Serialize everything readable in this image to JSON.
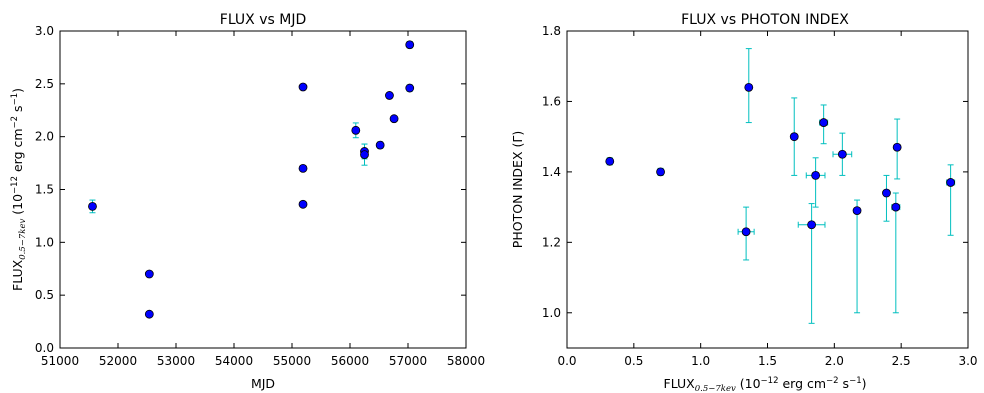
{
  "chart_data": [
    {
      "type": "scatter",
      "title": "FLUX vs MJD",
      "xlabel": "MJD",
      "ylabel": {
        "main": "FLUX",
        "sub": "0.5−7kev",
        "tail_open": " (10",
        "exp": "−12",
        "units": " erg cm",
        "units_exp": "−2",
        "units_s": " s",
        "s_exp": "−1",
        "tail_close": ")"
      },
      "xlim": [
        51000,
        58000
      ],
      "ylim": [
        0.0,
        3.0
      ],
      "xticks": [
        "51000",
        "52000",
        "53000",
        "54000",
        "55000",
        "56000",
        "57000",
        "58000"
      ],
      "yticks": [
        "0.0",
        "0.5",
        "1.0",
        "1.5",
        "2.0",
        "2.5",
        "3.0"
      ],
      "grid": false,
      "marker_color": "#0000ff",
      "errorbar_color": "#00bfbf",
      "points": [
        {
          "x": 51560,
          "y": 1.34,
          "yerr": 0.06
        },
        {
          "x": 52540,
          "y": 0.7,
          "yerr": 0.02
        },
        {
          "x": 52540,
          "y": 0.32,
          "yerr": 0.02
        },
        {
          "x": 55190,
          "y": 2.47,
          "yerr": 0.02
        },
        {
          "x": 55190,
          "y": 1.7,
          "yerr": 0.02
        },
        {
          "x": 55190,
          "y": 1.36,
          "yerr": 0.02
        },
        {
          "x": 56100,
          "y": 2.06,
          "yerr": 0.07
        },
        {
          "x": 56250,
          "y": 1.86,
          "yerr": 0.07
        },
        {
          "x": 56250,
          "y": 1.83,
          "yerr": 0.1
        },
        {
          "x": 56520,
          "y": 1.92,
          "yerr": 0.03
        },
        {
          "x": 56680,
          "y": 2.39,
          "yerr": 0.02
        },
        {
          "x": 56760,
          "y": 2.17,
          "yerr": 0.02
        },
        {
          "x": 57030,
          "y": 2.87,
          "yerr": 0.03
        },
        {
          "x": 57030,
          "y": 2.46,
          "yerr": 0.03
        }
      ]
    },
    {
      "type": "scatter",
      "title": "FLUX vs PHOTON INDEX",
      "xlabel": {
        "main": "FLUX",
        "sub": "0.5−7kev",
        "tail_open": " (10",
        "exp": "−12",
        "units": " erg cm",
        "units_exp": "−2",
        "units_s": " s",
        "s_exp": "−1",
        "tail_close": ")"
      },
      "ylabel": "PHOTON INDEX (Γ)",
      "xlim": [
        0.0,
        3.0
      ],
      "ylim": [
        0.9,
        1.8
      ],
      "xticks": [
        "0.0",
        "0.5",
        "1.0",
        "1.5",
        "2.0",
        "2.5",
        "3.0"
      ],
      "yticks": [
        "1.0",
        "1.2",
        "1.4",
        "1.6",
        "1.8"
      ],
      "grid": false,
      "marker_color": "#0000ff",
      "errorbar_color": "#00bfbf",
      "points": [
        {
          "x": 0.32,
          "y": 1.43,
          "xerr": 0.02,
          "yerr_low": 0.01,
          "yerr_high": 0.01
        },
        {
          "x": 0.7,
          "y": 1.4,
          "xerr": 0.02,
          "yerr_low": 0.01,
          "yerr_high": 0.01
        },
        {
          "x": 1.34,
          "y": 1.23,
          "xerr": 0.06,
          "yerr_low": 0.08,
          "yerr_high": 0.07
        },
        {
          "x": 1.36,
          "y": 1.64,
          "xerr": 0.02,
          "yerr_low": 0.1,
          "yerr_high": 0.11
        },
        {
          "x": 1.7,
          "y": 1.5,
          "xerr": 0.02,
          "yerr_low": 0.11,
          "yerr_high": 0.11
        },
        {
          "x": 1.83,
          "y": 1.25,
          "xerr": 0.1,
          "yerr_low": 0.28,
          "yerr_high": 0.06
        },
        {
          "x": 1.86,
          "y": 1.39,
          "xerr": 0.07,
          "yerr_low": 0.09,
          "yerr_high": 0.05
        },
        {
          "x": 1.92,
          "y": 1.54,
          "xerr": 0.03,
          "yerr_low": 0.06,
          "yerr_high": 0.05
        },
        {
          "x": 2.06,
          "y": 1.45,
          "xerr": 0.07,
          "yerr_low": 0.06,
          "yerr_high": 0.06
        },
        {
          "x": 2.17,
          "y": 1.29,
          "xerr": 0.02,
          "yerr_low": 0.29,
          "yerr_high": 0.03
        },
        {
          "x": 2.39,
          "y": 1.34,
          "xerr": 0.02,
          "yerr_low": 0.08,
          "yerr_high": 0.05
        },
        {
          "x": 2.46,
          "y": 1.3,
          "xerr": 0.03,
          "yerr_low": 0.3,
          "yerr_high": 0.04
        },
        {
          "x": 2.47,
          "y": 1.47,
          "xerr": 0.02,
          "yerr_low": 0.09,
          "yerr_high": 0.08
        },
        {
          "x": 2.87,
          "y": 1.37,
          "xerr": 0.03,
          "yerr_low": 0.15,
          "yerr_high": 0.05
        }
      ]
    }
  ]
}
